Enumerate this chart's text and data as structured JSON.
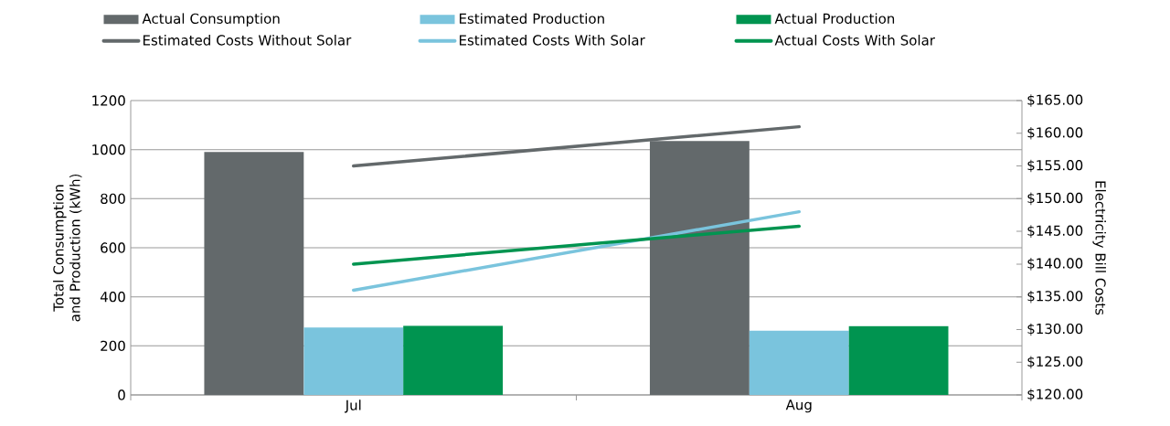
{
  "chart_data": {
    "type": "bar",
    "categories": [
      "Jul",
      "Aug"
    ],
    "ylabel": "Total Consumption and Production (kWh)",
    "y2label": "Electricity Bill Costs",
    "ylim": [
      0,
      1200
    ],
    "yticks": [
      0,
      200,
      400,
      600,
      800,
      1000,
      1200
    ],
    "y2lim": [
      120,
      165
    ],
    "y2ticks": [
      {
        "value": 120,
        "label": "$120.00"
      },
      {
        "value": 125,
        "label": "$125.00"
      },
      {
        "value": 130,
        "label": "$130.00"
      },
      {
        "value": 135,
        "label": "$135.00"
      },
      {
        "value": 140,
        "label": "$140.00"
      },
      {
        "value": 145,
        "label": "$145.00"
      },
      {
        "value": 150,
        "label": "$150.00"
      },
      {
        "value": 155,
        "label": "$155.00"
      },
      {
        "value": 160,
        "label": "$160.00"
      },
      {
        "value": 165,
        "label": "$165.00"
      }
    ],
    "grid": "y",
    "legend": "top",
    "marker": "none",
    "line_style": "solid",
    "series": [
      {
        "name": "Actual Consumption",
        "color": "#63696b",
        "values": [
          990,
          1035
        ]
      },
      {
        "name": "Estimated Production",
        "color": "#7ac4dd",
        "values": [
          275,
          262
        ]
      },
      {
        "name": "Actual Production",
        "color": "#009450",
        "values": [
          282,
          280
        ]
      },
      {
        "name": "Estimated Costs Without Solar",
        "type": "line",
        "axis": "y2",
        "color": "#63696b",
        "values": [
          155.0,
          161.0
        ]
      },
      {
        "name": "Estimated Costs With Solar",
        "type": "line",
        "axis": "y2",
        "color": "#7ac4dd",
        "values": [
          136.0,
          148.0
        ]
      },
      {
        "name": "Actual Costs With Solar",
        "type": "line",
        "axis": "y2",
        "color": "#009450",
        "values": [
          140.0,
          145.8
        ]
      }
    ]
  }
}
